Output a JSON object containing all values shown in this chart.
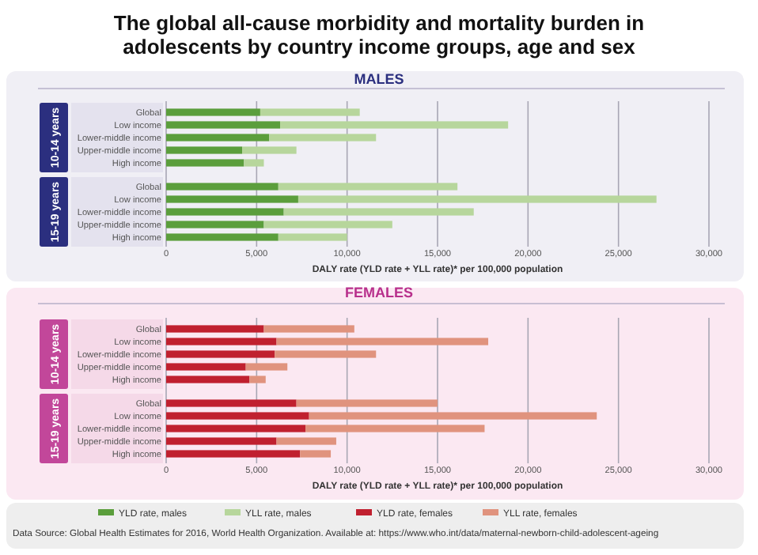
{
  "chart_data": [
    {
      "type": "bar",
      "orientation": "horizontal",
      "stacked": true,
      "title": "The global all-cause morbidity and mortality burden in adolescents by country income groups, age and sex",
      "subtitle": "MALES",
      "ylabel": "10-14 years",
      "categories": [
        "Global",
        "Low income",
        "Lower-middle income",
        "Upper-middle income",
        "High income"
      ],
      "series": [
        {
          "color": "#5b9e3c",
          "values": [
            5200,
            6300,
            5700,
            4200,
            4300
          ]
        },
        {
          "color": "#b7d69c",
          "values": [
            5500,
            12600,
            5900,
            3000,
            1100
          ]
        }
      ],
      "xlim": [
        0,
        30000
      ],
      "xticks": [
        {
          "value": 0,
          "label": null
        },
        {
          "value": 5000,
          "label": null
        },
        {
          "value": 10000,
          "label": null
        },
        {
          "value": 15000,
          "label": null
        },
        {
          "value": 20000,
          "label": null
        },
        {
          "value": 25000,
          "label": null
        },
        {
          "value": 30000,
          "label": null
        }
      ],
      "grid": "x",
      "tick_labels": "y"
    },
    {
      "type": "bar",
      "orientation": "horizontal",
      "stacked": true,
      "ylabel": "15-19 years",
      "xlabel": "DALY rate (YLD rate + YLL rate)* per 100,000 population",
      "categories": [
        "Global",
        "Low income",
        "Lower-middle income",
        "Upper-middle income",
        "High income"
      ],
      "series": [
        {
          "name": "YLD rate, males",
          "color": "#5b9e3c",
          "values": [
            6200,
            7300,
            6500,
            5400,
            6200
          ]
        },
        {
          "name": "YLL rate, males",
          "color": "#b7d69c",
          "values": [
            9900,
            19800,
            10500,
            7100,
            3800
          ]
        }
      ],
      "xlim": [
        0,
        30000
      ],
      "xticks": [
        {
          "value": 0,
          "label": "0"
        },
        {
          "value": 5000,
          "label": "5,000"
        },
        {
          "value": 10000,
          "label": "10,000"
        },
        {
          "value": 15000,
          "label": "15,000"
        },
        {
          "value": 20000,
          "label": "20,000"
        },
        {
          "value": 25000,
          "label": "25,000"
        },
        {
          "value": 30000,
          "label": "30,000"
        }
      ],
      "grid": "x",
      "legend": "bottom"
    },
    {
      "type": "bar",
      "orientation": "horizontal",
      "stacked": true,
      "title": "FEMALES",
      "ylabel": "10-14 years",
      "categories": [
        "Global",
        "Low income",
        "Lower-middle income",
        "Upper-middle income",
        "High income"
      ],
      "series": [
        {
          "color": "#c0202f",
          "values": [
            5400,
            6100,
            6000,
            4400,
            4600
          ]
        },
        {
          "color": "#e0937e",
          "values": [
            5000,
            11700,
            5600,
            2300,
            900
          ]
        }
      ],
      "xlim": [
        0,
        30000
      ],
      "xticks": [
        {
          "value": 0,
          "label": null
        },
        {
          "value": 5000,
          "label": null
        },
        {
          "value": 10000,
          "label": null
        },
        {
          "value": 15000,
          "label": null
        },
        {
          "value": 20000,
          "label": null
        },
        {
          "value": 25000,
          "label": null
        },
        {
          "value": 30000,
          "label": null
        }
      ],
      "grid": "x",
      "tick_labels": "y"
    },
    {
      "type": "bar",
      "orientation": "horizontal",
      "stacked": true,
      "ylabel": "15-19 years",
      "xlabel": "DALY rate (YLD rate + YLL rate)* per 100,000 population",
      "categories": [
        "Global",
        "Low income",
        "Lower-middle income",
        "Upper-middle income",
        "High income"
      ],
      "series": [
        {
          "name": "YLD rate, females",
          "color": "#c0202f",
          "values": [
            7200,
            7900,
            7700,
            6100,
            7400
          ]
        },
        {
          "name": "YLL rate, females",
          "color": "#e0937e",
          "values": [
            7800,
            15900,
            9900,
            3300,
            1700
          ]
        }
      ],
      "xlim": [
        0,
        30000
      ],
      "xticks": [
        {
          "value": 0,
          "label": "0"
        },
        {
          "value": 5000,
          "label": "5,000"
        },
        {
          "value": 10000,
          "label": "10,000"
        },
        {
          "value": 15000,
          "label": "15,000"
        },
        {
          "value": 20000,
          "label": "20,000"
        },
        {
          "value": 25000,
          "label": "25,000"
        },
        {
          "value": 30000,
          "label": "30,000"
        }
      ],
      "grid": "x",
      "legend": "bottom",
      "annotations": [
        "Data Source: Global Health Estimates for 2016, World Health Organization. Available at: https://www.who.int/data/maternal-newborn-child-adolescent-ageing"
      ]
    }
  ]
}
